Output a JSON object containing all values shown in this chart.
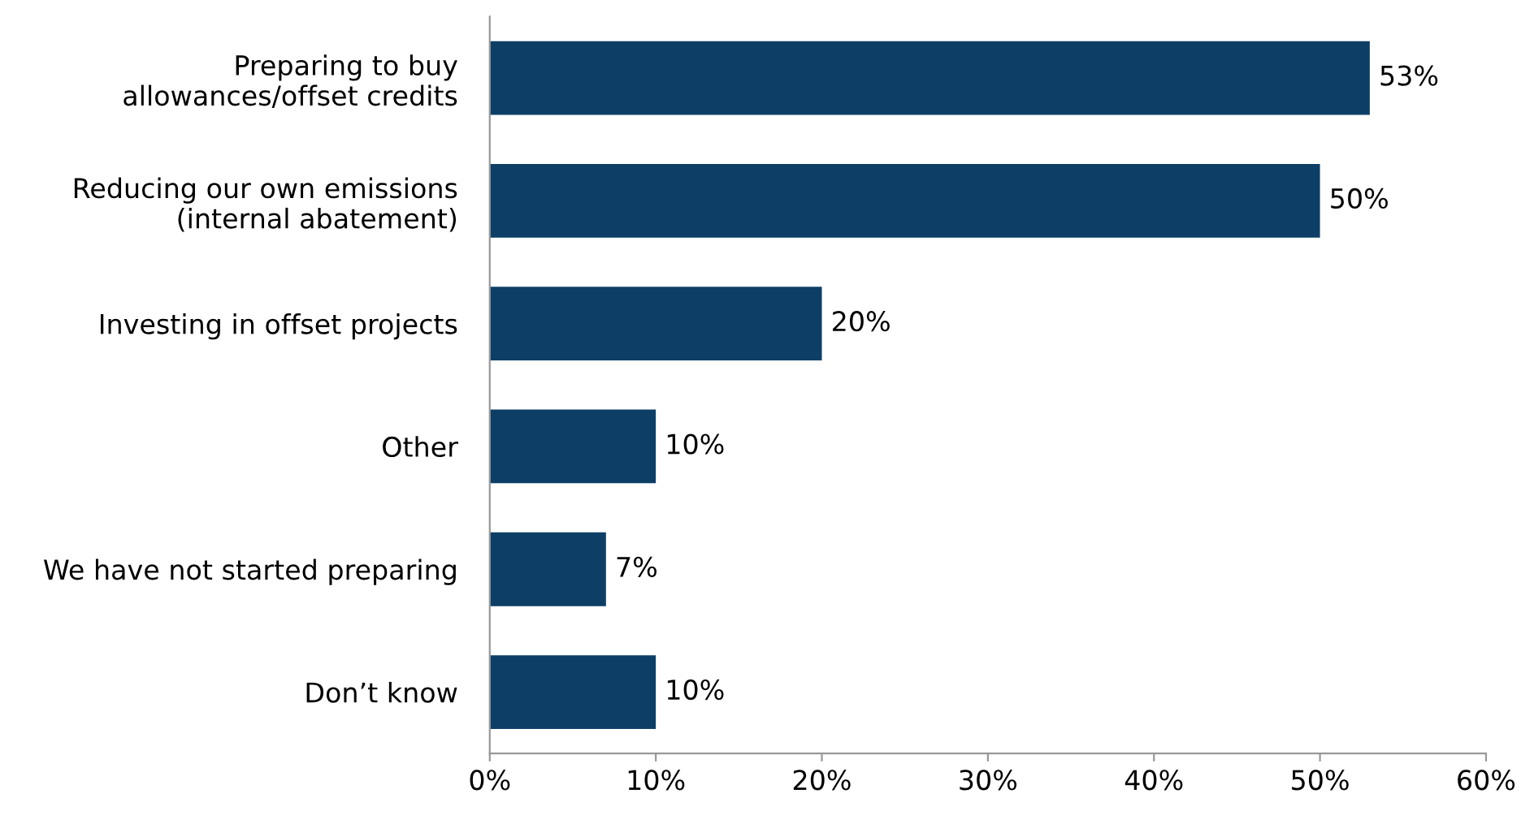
{
  "chart_data": {
    "type": "bar",
    "orientation": "horizontal",
    "categories": [
      "Preparing to buy\nallowances/offset credits",
      "Reducing our own emissions\n(internal abatement)",
      "Investing in offset projects",
      "Other",
      "We have not started preparing",
      "Don’t know"
    ],
    "values": [
      53,
      50,
      20,
      10,
      7,
      10
    ],
    "value_labels": [
      "53%",
      "50%",
      "20%",
      "10%",
      "7%",
      "10%"
    ],
    "color": "#0d3f66",
    "xlim": [
      0,
      60
    ],
    "xticks": [
      {
        "value": 0,
        "label": "0%"
      },
      {
        "value": 10,
        "label": "10%"
      },
      {
        "value": 20,
        "label": "20%"
      },
      {
        "value": 30,
        "label": "30%"
      },
      {
        "value": 40,
        "label": "40%"
      },
      {
        "value": 50,
        "label": "50%"
      },
      {
        "value": 60,
        "label": "60%"
      }
    ],
    "grid": false
  }
}
